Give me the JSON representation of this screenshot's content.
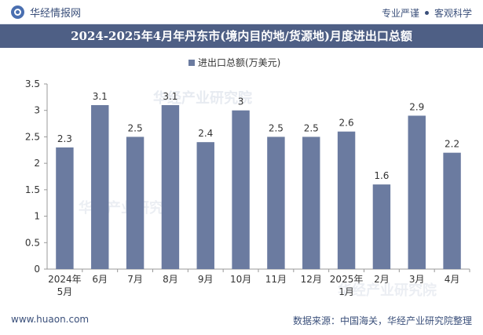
{
  "header": {
    "brand": "华经情报网",
    "tagline_left": "专业严谨",
    "tagline_right": "客观科学"
  },
  "chart_data": {
    "type": "bar",
    "title": "2024-2025年4月年丹东市(境内目的地/货源地)月度进出口总额",
    "legend": "进出口总额(万美元)",
    "categories": [
      [
        "2024年",
        "5月"
      ],
      [
        "6月"
      ],
      [
        "7月"
      ],
      [
        "8月"
      ],
      [
        "9月"
      ],
      [
        "10月"
      ],
      [
        "11月"
      ],
      [
        "12月"
      ],
      [
        "2025年",
        "1月"
      ],
      [
        "2月"
      ],
      [
        "3月"
      ],
      [
        "4月"
      ]
    ],
    "values": [
      2.3,
      3.1,
      2.5,
      3.1,
      2.4,
      3,
      2.5,
      2.5,
      2.6,
      1.6,
      2.9,
      2.2
    ],
    "value_labels": [
      "2.3",
      "3.1",
      "2.5",
      "3.1",
      "2.4",
      "3",
      "2.5",
      "2.5",
      "2.6",
      "1.6",
      "2.9",
      "2.2"
    ],
    "ylim": [
      0,
      3.5
    ],
    "yticks": [
      "0",
      "0.5",
      "1",
      "1.5",
      "2",
      "2.5",
      "3",
      "3.5"
    ],
    "bar_color": "#6b7ba0",
    "xlabel": "",
    "ylabel": ""
  },
  "footer": {
    "url": "www.huaon.com",
    "source": "数据来源：中国海关，华经产业研究院整理"
  },
  "watermark": "华经产业研究院"
}
